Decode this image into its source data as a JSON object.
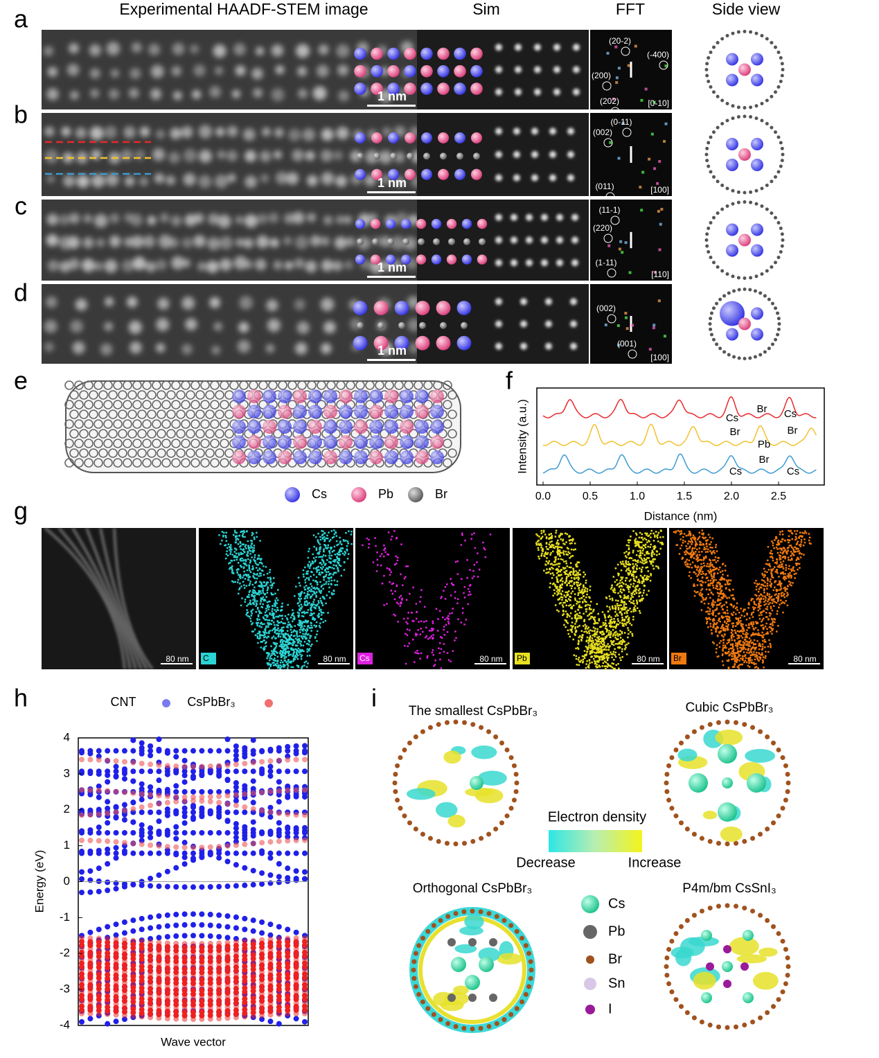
{
  "panel_letters": [
    "a",
    "b",
    "c",
    "d",
    "e",
    "f",
    "g",
    "h",
    "i"
  ],
  "headers": [
    "Experimental HAADF-STEM image",
    "Sim",
    "FFT",
    "Side view"
  ],
  "rows": [
    {
      "scale": "1 nm",
      "fft_labels": [
        "(20-2)",
        "(-400)",
        "(200)",
        "(202)"
      ],
      "zone": "[0-10]"
    },
    {
      "scale": "1 nm",
      "fft_labels": [
        "(0-11)",
        "(002)",
        "(011)"
      ],
      "zone": "[100]"
    },
    {
      "scale": "1 nm",
      "fft_labels": [
        "(11-1)",
        "(220)",
        "(1-11)"
      ],
      "zone": "[110]"
    },
    {
      "scale": "1 nm",
      "fft_labels": [
        "(002)",
        "(001)"
      ],
      "zone": "[100]"
    }
  ],
  "legend_e": [
    "Cs",
    "Pb",
    "Br"
  ],
  "panel_f": {
    "ylabel": "Intensity (a.u.)",
    "xlabel": "Distance (nm)",
    "xticks": [
      {
        "value": 0,
        "label": "0.0"
      },
      {
        "value": 0.5,
        "label": "0.5"
      },
      {
        "value": 1,
        "label": "1.0"
      },
      {
        "value": 1.5,
        "label": "1.5"
      },
      {
        "value": 2,
        "label": "2.0"
      },
      {
        "value": 2.5,
        "label": "2.5"
      }
    ],
    "annotations": [
      [
        "Cs",
        "Br",
        "Cs"
      ],
      [
        "Br",
        "Pb",
        "Br"
      ],
      [
        "Cs",
        "Br",
        "Cs"
      ]
    ]
  },
  "panel_g": {
    "scale": "80 nm",
    "elements": [
      "C",
      "Cs",
      "Pb",
      "Br"
    ]
  },
  "panel_h": {
    "legend": [
      "CNT",
      "CsPbBr₃"
    ],
    "ylabel": "Energy (eV)",
    "xlabel": "Wave vector",
    "yticks": [
      4,
      3,
      2,
      1,
      0,
      -1,
      -2,
      -3,
      -4
    ]
  },
  "panel_i": {
    "titles": [
      "The smallest CsPbBr₃",
      "Cubic CsPbBr₃",
      "Orthogonal CsPbBr₃",
      "P4m/bm CsSnI₃"
    ],
    "colorbar_title": "Electron density",
    "colorbar_low": "Decrease",
    "colorbar_high": "Increase",
    "legend": [
      "Cs",
      "Pb",
      "Br",
      "Sn",
      "I"
    ]
  }
}
